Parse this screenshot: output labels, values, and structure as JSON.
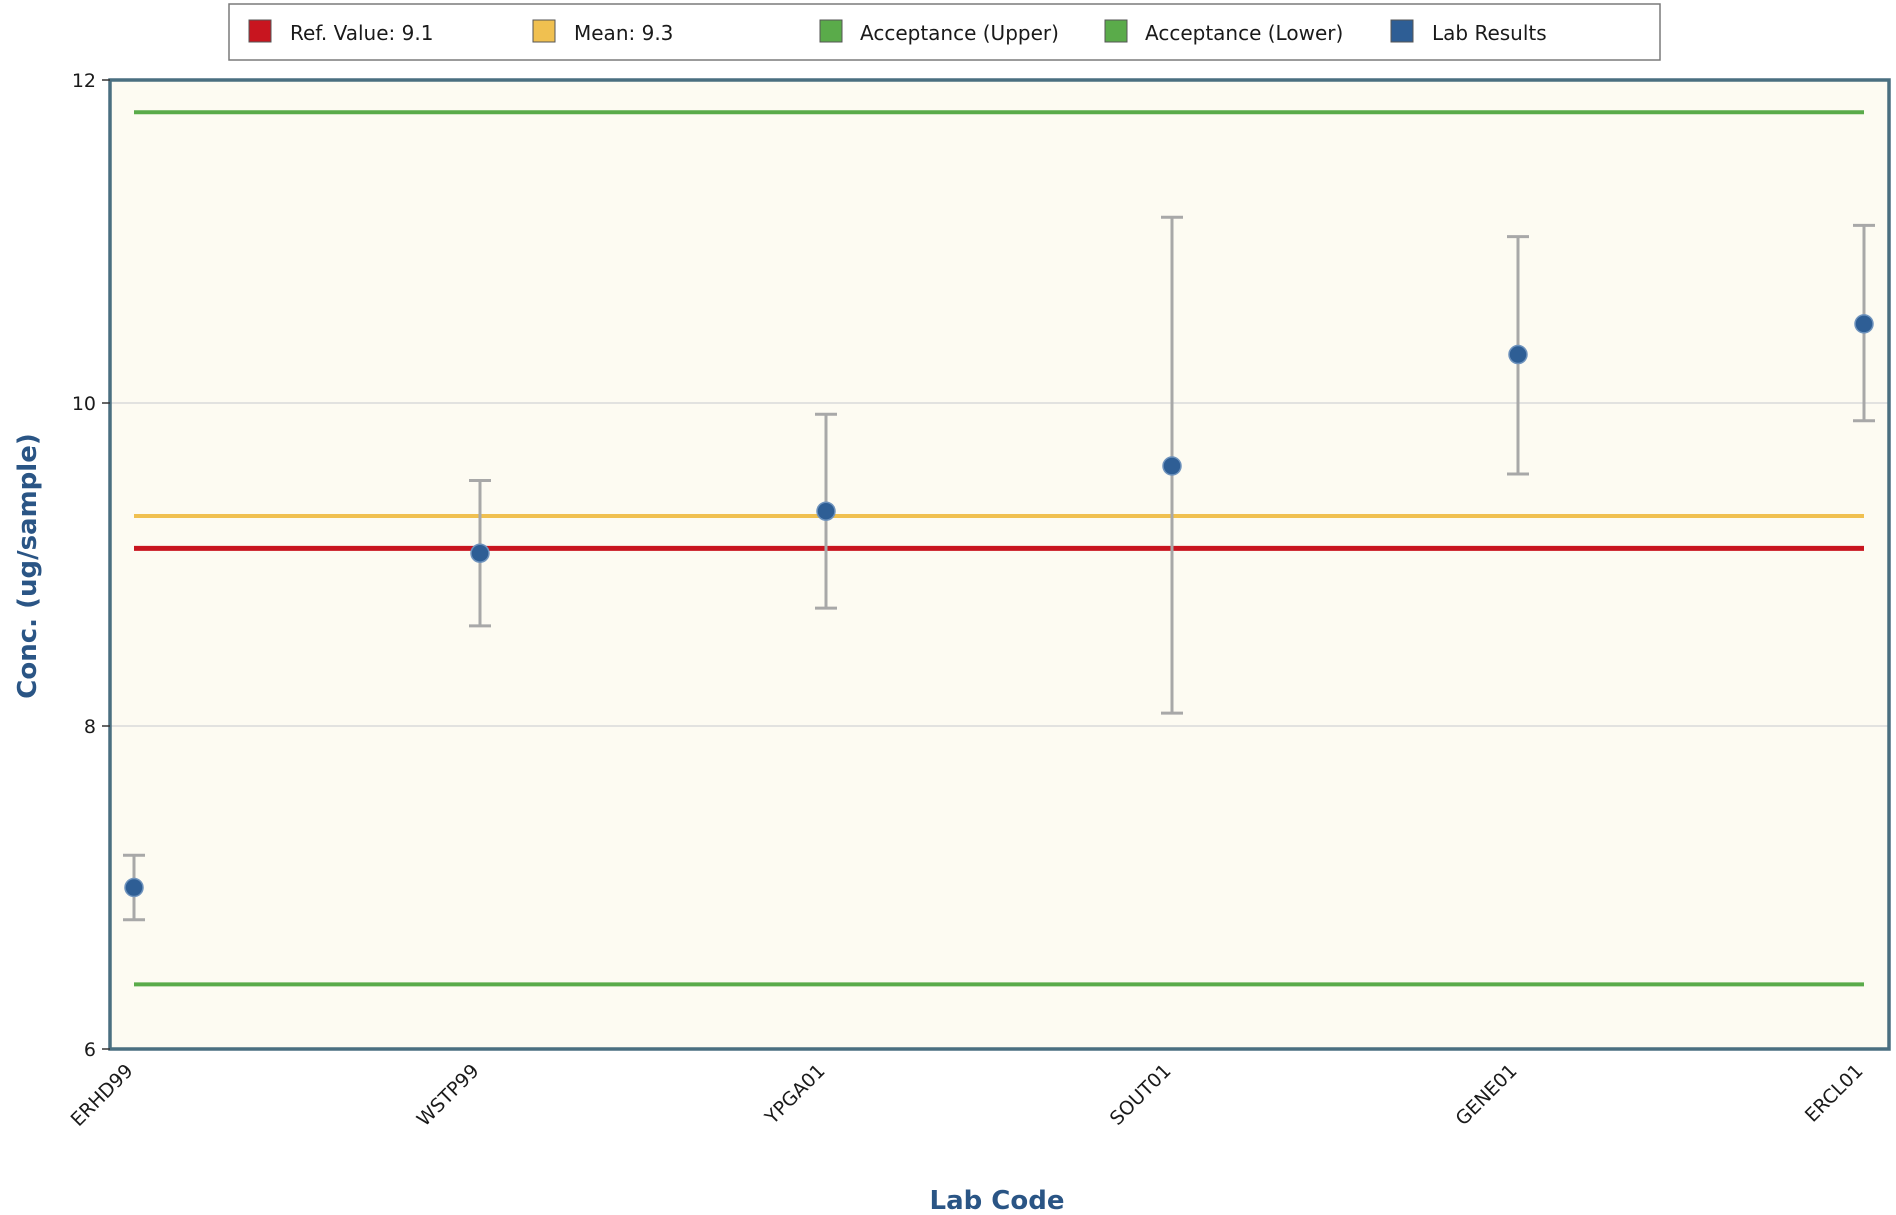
{
  "chart_data": {
    "type": "scatter",
    "title": "",
    "xlabel": "Lab Code",
    "ylabel": "Conc. (ug/sample)",
    "ylim": [
      6,
      12
    ],
    "y_ticks": [
      6,
      8,
      10,
      12
    ],
    "grid": true,
    "legend_position": "top",
    "categories": [
      "ERHD99",
      "WSTP99",
      "YPGA01",
      "SOUT01",
      "GENE01",
      "ERCL01"
    ],
    "series": [
      {
        "name": "Lab Results",
        "color": "#2e5e95",
        "values": [
          7.0,
          9.07,
          9.33,
          9.61,
          10.3,
          10.49
        ],
        "error_low": [
          6.8,
          8.62,
          8.73,
          8.08,
          9.56,
          9.89
        ],
        "error_high": [
          7.2,
          9.52,
          9.93,
          11.15,
          11.03,
          11.1
        ]
      }
    ],
    "reference_lines": [
      {
        "name": "Ref. Value: 9.1",
        "value": 9.1,
        "color": "#c8151f"
      },
      {
        "name": "Mean: 9.3",
        "value": 9.3,
        "color": "#f0c050"
      },
      {
        "name": "Acceptance (Upper)",
        "value": 11.8,
        "color": "#5aab4a"
      },
      {
        "name": "Acceptance (Lower)",
        "value": 6.4,
        "color": "#5aab4a"
      }
    ],
    "legend": [
      {
        "label": "Ref. Value: 9.1",
        "color": "#c8151f"
      },
      {
        "label": "Mean: 9.3",
        "color": "#f0c050"
      },
      {
        "label": "Acceptance (Upper)",
        "color": "#5aab4a"
      },
      {
        "label": "Acceptance (Lower)",
        "color": "#5aab4a"
      },
      {
        "label": "Lab Results",
        "color": "#2e5e95"
      }
    ],
    "plot_background": "#fdfbf2",
    "frame_color": "#4a6f80",
    "grid_color": "#d9d9d9",
    "errorbar_color": "#a8a8a8",
    "axis_title_color": "#2a5585"
  }
}
